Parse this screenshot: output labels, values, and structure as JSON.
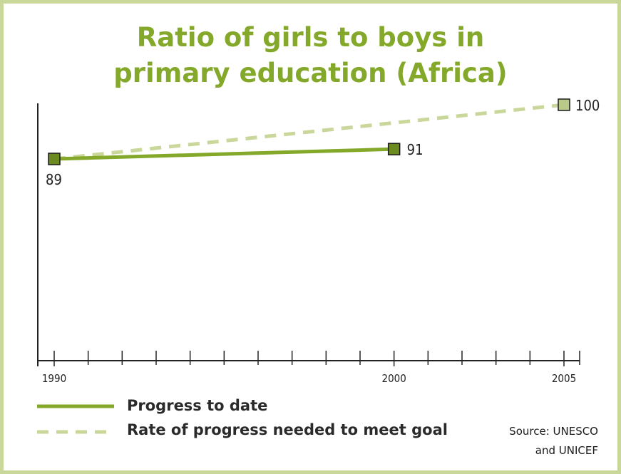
{
  "colors": {
    "progress": "#84a82a",
    "goal": "#c9d79a",
    "frame": "#c9d79a",
    "marker_dark": "#6b8a1f",
    "marker_light": "#b9c98a",
    "axis": "#222222"
  },
  "chart_data": {
    "type": "line",
    "title": "Ratio of girls to boys in primary education (Africa)",
    "title_lines": [
      "Ratio of girls to boys in",
      "primary education (Africa)"
    ],
    "x_tick_labels": [
      "1990",
      "2000",
      "2005"
    ],
    "xlim": [
      1990,
      2005
    ],
    "ylim": [
      0,
      100
    ],
    "grid": false,
    "series": [
      {
        "name": "Progress to date",
        "style": "solid",
        "x": [
          1990,
          2000
        ],
        "y": [
          89,
          91
        ],
        "labels": [
          "89",
          "91"
        ]
      },
      {
        "name": "Rate of progress needed to meet goal",
        "style": "dashed",
        "x": [
          1990,
          2005
        ],
        "y": [
          89,
          100
        ],
        "labels": [
          "",
          "100"
        ]
      }
    ]
  },
  "legend": {
    "items": [
      {
        "label": "Progress to date",
        "style": "solid"
      },
      {
        "label": "Rate of progress needed to meet goal",
        "style": "dashed"
      }
    ]
  },
  "source": {
    "line1": "Source: UNESCO",
    "line2": "and UNICEF"
  }
}
